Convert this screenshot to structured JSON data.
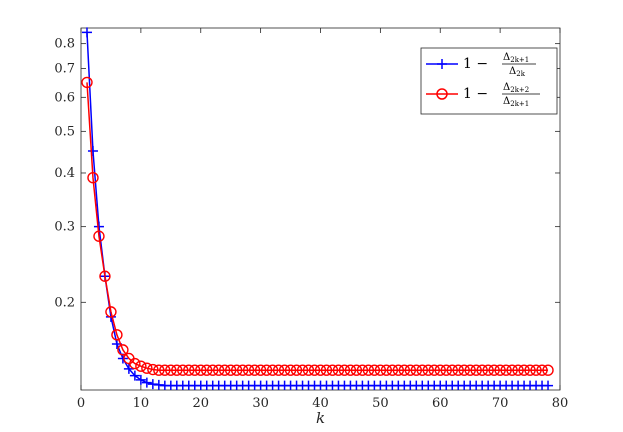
{
  "chart_data": {
    "type": "line",
    "xlabel": "k",
    "ylabel": "",
    "title": "",
    "xlim": [
      0,
      80
    ],
    "ylim": [
      0.125,
      0.87
    ],
    "yscale": "log",
    "grid": false,
    "legend_position": "top-right",
    "xticks": [
      0,
      10,
      20,
      30,
      40,
      50,
      60,
      70,
      80
    ],
    "xtick_labels": [
      "0",
      "10",
      "20",
      "30",
      "40",
      "50",
      "60",
      "70",
      "80"
    ],
    "yticks": [
      0.2,
      0.3,
      0.4,
      0.5,
      0.6,
      0.7,
      0.8
    ],
    "ytick_labels": [
      "0.2",
      "0.3",
      "0.4",
      "0.5",
      "0.6",
      "0.7",
      "0.8"
    ],
    "legend": {
      "blue": {
        "prefix": "1 −",
        "num": "Δ",
        "num_sub": "2k+1",
        "den": "Δ",
        "den_sub": "2k"
      },
      "red": {
        "prefix": "1 −",
        "num": "Δ",
        "num_sub": "2k+2",
        "den": "Δ",
        "den_sub": "2k+1"
      }
    },
    "x": [
      1,
      2,
      3,
      4,
      5,
      6,
      7,
      8,
      9,
      10,
      11,
      12,
      13,
      14,
      15,
      16,
      17,
      18,
      19,
      20,
      21,
      22,
      23,
      24,
      25,
      26,
      27,
      28,
      29,
      30,
      31,
      32,
      33,
      34,
      35,
      36,
      37,
      38,
      39,
      40,
      41,
      42,
      43,
      44,
      45,
      46,
      47,
      48,
      49,
      50,
      51,
      52,
      53,
      54,
      55,
      56,
      57,
      58,
      59,
      60,
      61,
      62,
      63,
      64,
      65,
      66,
      67,
      68,
      69,
      70,
      71,
      72,
      73,
      74,
      75,
      76,
      77,
      78
    ],
    "series": [
      {
        "color": "#0000ff",
        "marker": "plus",
        "values": [
          0.85,
          0.45,
          0.3,
          0.23,
          0.185,
          0.16,
          0.148,
          0.14,
          0.135,
          0.132,
          0.13,
          0.129,
          0.1285,
          0.128,
          0.128,
          0.128,
          0.128,
          0.128,
          0.128,
          0.128,
          0.128,
          0.128,
          0.128,
          0.128,
          0.128,
          0.128,
          0.128,
          0.128,
          0.128,
          0.128,
          0.128,
          0.128,
          0.128,
          0.128,
          0.128,
          0.128,
          0.128,
          0.128,
          0.128,
          0.128,
          0.128,
          0.128,
          0.128,
          0.128,
          0.128,
          0.128,
          0.128,
          0.128,
          0.128,
          0.128,
          0.128,
          0.128,
          0.128,
          0.128,
          0.128,
          0.128,
          0.128,
          0.128,
          0.128,
          0.128,
          0.128,
          0.128,
          0.128,
          0.128,
          0.128,
          0.128,
          0.128,
          0.128,
          0.128,
          0.128,
          0.128,
          0.128,
          0.128,
          0.128,
          0.128,
          0.128,
          0.128,
          0.128
        ]
      },
      {
        "color": "#ff0000",
        "marker": "circle",
        "values": [
          0.65,
          0.39,
          0.285,
          0.23,
          0.19,
          0.168,
          0.155,
          0.148,
          0.144,
          0.142,
          0.1405,
          0.1395,
          0.139,
          0.139,
          0.139,
          0.139,
          0.139,
          0.139,
          0.139,
          0.139,
          0.139,
          0.139,
          0.139,
          0.139,
          0.139,
          0.139,
          0.139,
          0.139,
          0.139,
          0.139,
          0.139,
          0.139,
          0.139,
          0.139,
          0.139,
          0.139,
          0.139,
          0.139,
          0.139,
          0.139,
          0.139,
          0.139,
          0.139,
          0.139,
          0.139,
          0.139,
          0.139,
          0.139,
          0.139,
          0.139,
          0.139,
          0.139,
          0.139,
          0.139,
          0.139,
          0.139,
          0.139,
          0.139,
          0.139,
          0.139,
          0.139,
          0.139,
          0.139,
          0.139,
          0.139,
          0.139,
          0.139,
          0.139,
          0.139,
          0.139,
          0.139,
          0.139,
          0.139,
          0.139,
          0.139,
          0.139,
          0.139,
          0.139
        ]
      }
    ]
  }
}
